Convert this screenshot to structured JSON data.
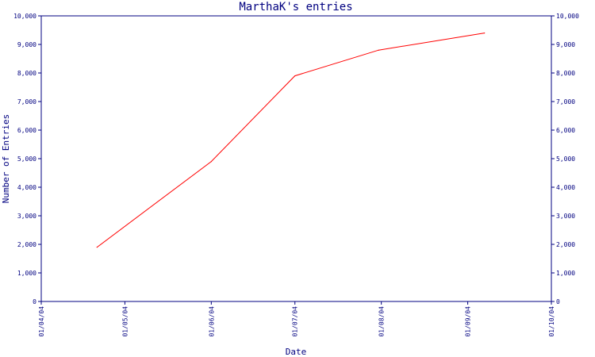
{
  "chart_data": {
    "type": "line",
    "title": "MarthaK's entries",
    "xlabel": "Date",
    "ylabel": "Number of Entries",
    "x_ticks": [
      "01/04/04",
      "01/05/04",
      "01/06/04",
      "01/07/04",
      "01/08/04",
      "01/09/04",
      "01/10/04"
    ],
    "y_ticks": [
      "0",
      "1,000",
      "2,000",
      "3,000",
      "4,000",
      "5,000",
      "6,000",
      "7,000",
      "8,000",
      "9,000",
      "10,000"
    ],
    "ylim": [
      0,
      10000
    ],
    "xlim": [
      "2004-04-01",
      "2004-10-01"
    ],
    "series": [
      {
        "color": "#ff0000",
        "points": [
          {
            "x": "2004-04-21",
            "y": 1900
          },
          {
            "x": "2004-06-01",
            "y": 4900
          },
          {
            "x": "2004-07-01",
            "y": 7900
          },
          {
            "x": "2004-07-31",
            "y": 8800
          },
          {
            "x": "2004-09-07",
            "y": 9400
          }
        ]
      }
    ],
    "axis_color": "#000080",
    "y_axis_both_sides": true,
    "grid": false
  }
}
